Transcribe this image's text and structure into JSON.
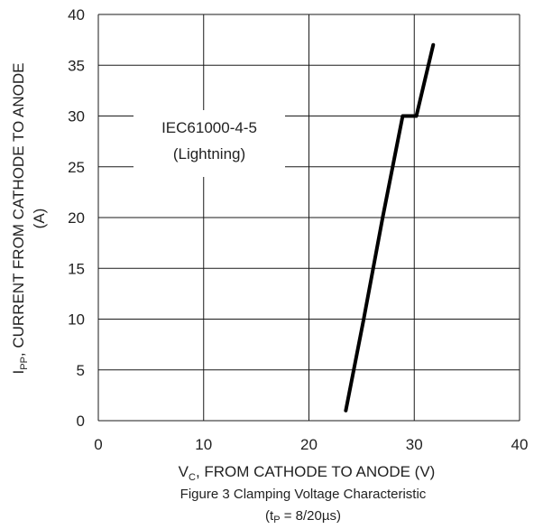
{
  "chart_data": {
    "type": "line",
    "x": [
      23.5,
      25.2,
      27.0,
      28.9,
      30.2,
      31.8
    ],
    "series": [
      {
        "values": [
          1,
          10,
          20,
          30,
          30,
          37
        ]
      }
    ],
    "xlim": [
      0,
      40
    ],
    "ylim": [
      0,
      40
    ],
    "xticks": [
      0,
      10,
      20,
      30,
      40
    ],
    "yticks": [
      0,
      5,
      10,
      15,
      20,
      25,
      30,
      35,
      40
    ],
    "grid": true,
    "xlabel": {
      "main": "V",
      "sub": "C",
      "rest": ", FROM CATHODE TO ANODE (V)"
    },
    "ylabel": {
      "main": "I",
      "sub": "PP",
      "rest": ", CURRENT FROM CATHODE TO ANODE",
      "line2": "(A)"
    },
    "annotation": {
      "line1": "IEC61000-4-5",
      "line2": "(Lightning)"
    },
    "caption": {
      "line1": "Figure 3 Clamping Voltage Characteristic",
      "line2_pre": "(t",
      "line2_sub": "P",
      "line2_post": " = 8/20µs)"
    }
  }
}
